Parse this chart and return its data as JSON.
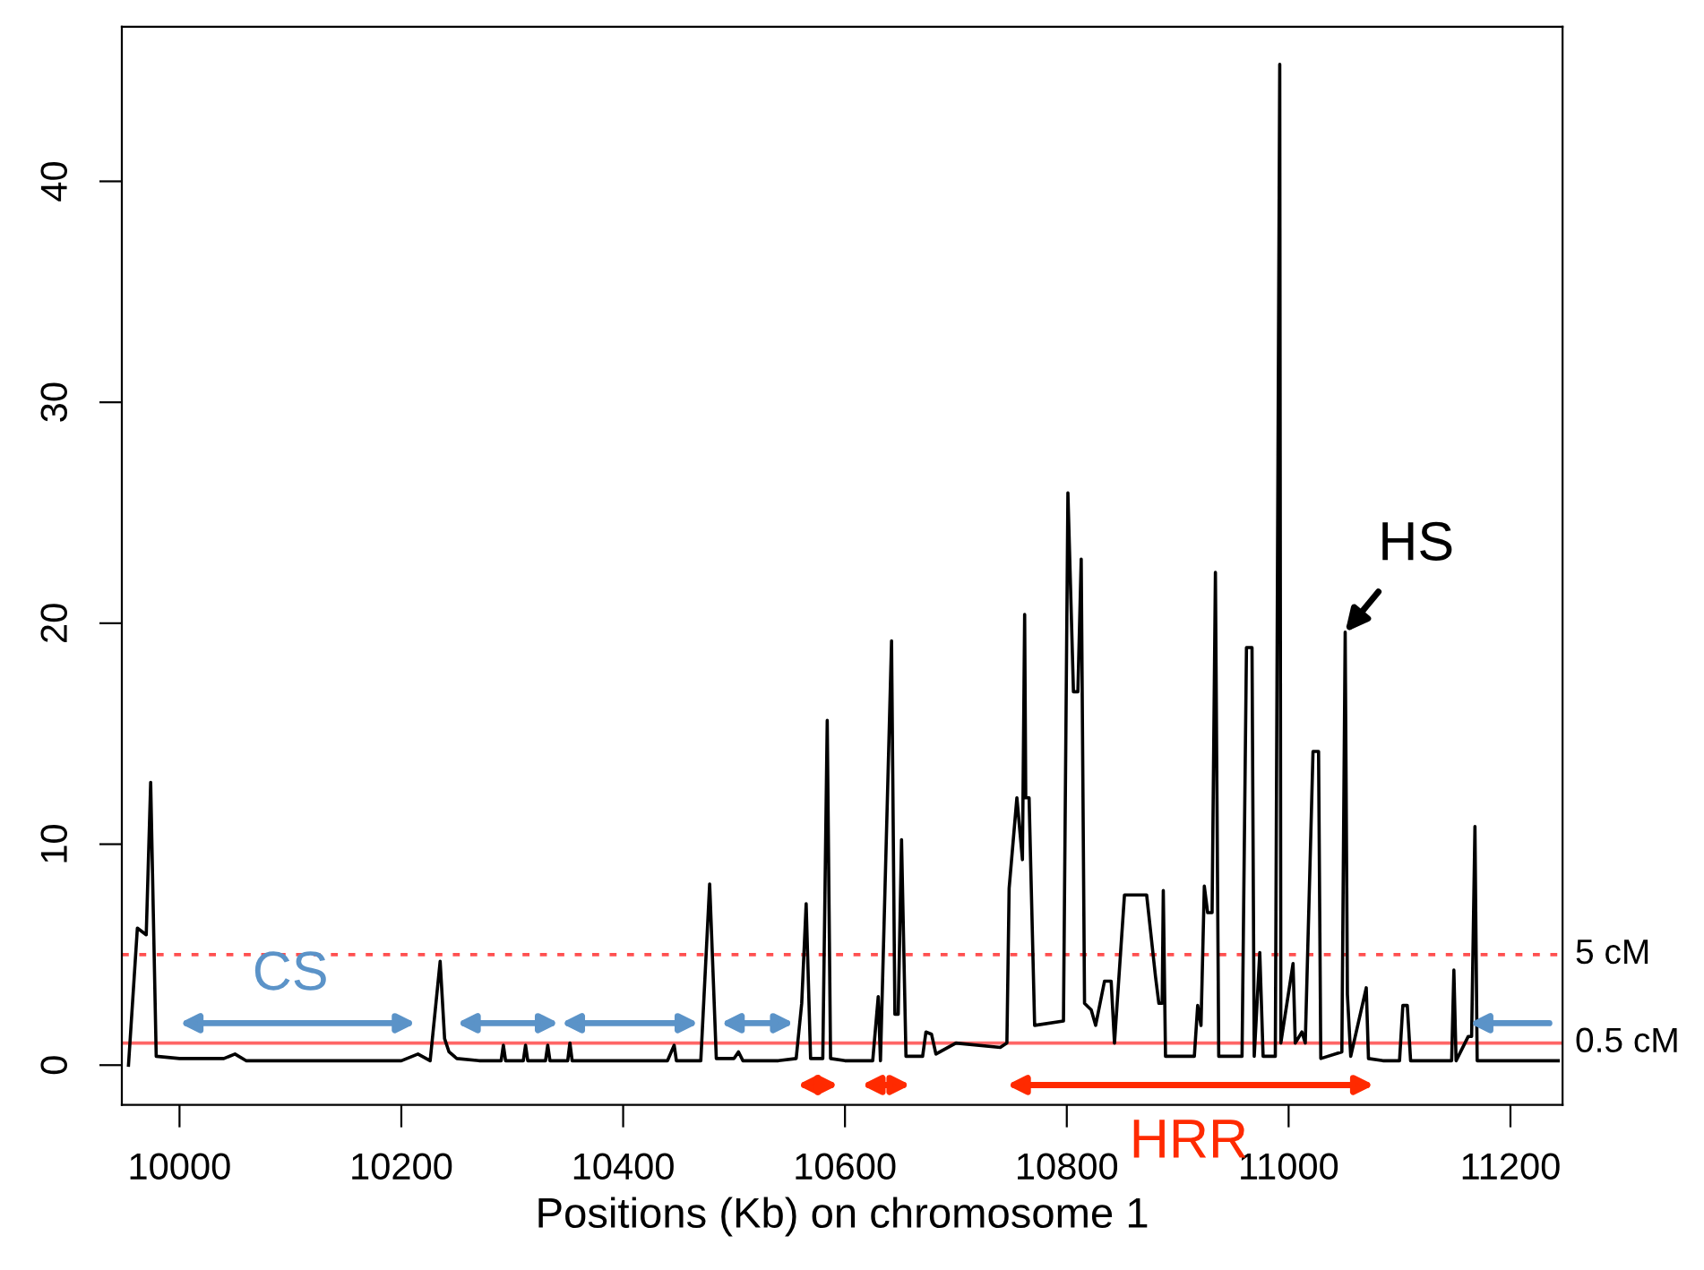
{
  "chart_data": {
    "type": "line",
    "xlabel": "Positions (Kb) on chromosome 1",
    "xlim": [
      9948,
      11247
    ],
    "xticks": [
      10000,
      10200,
      10400,
      10600,
      10800,
      11000,
      11200
    ],
    "ylim": [
      -1.8,
      47.0
    ],
    "yticks": [
      0,
      10,
      20,
      30,
      40
    ],
    "grid": false,
    "legend": false,
    "marker": "none",
    "line_style": "solid",
    "series": [
      {
        "color": "#000000",
        "x": [
          9954,
          9962,
          9970,
          9974,
          9979,
          10000,
          10020,
          10040,
          10050,
          10060,
          10100,
          10200,
          10215,
          10226,
          10235,
          10239,
          10243,
          10250,
          10270,
          10290,
          10292,
          10294,
          10310,
          10312,
          10314,
          10330,
          10332,
          10334,
          10350,
          10352,
          10354,
          10380,
          10400,
          10440,
          10446,
          10448,
          10470,
          10478,
          10484,
          10500,
          10504,
          10508,
          10540,
          10556,
          10561,
          10565,
          10569,
          10580,
          10584,
          10587,
          10600,
          10625,
          10630,
          10632,
          10642,
          10645,
          10648,
          10651,
          10655,
          10670,
          10673,
          10678,
          10682,
          10700,
          10740,
          10746,
          10748,
          10755,
          10760,
          10762,
          10763,
          10766,
          10771,
          10797,
          10801,
          10806,
          10810,
          10813,
          10816,
          10822,
          10826,
          10834,
          10840,
          10843,
          10852,
          10872,
          10880,
          10883,
          10886,
          10887,
          10889,
          10915,
          10918,
          10921,
          10924,
          10927,
          10931,
          10934,
          10937,
          10958,
          10962,
          10967,
          10969,
          10974,
          10977,
          10988,
          10992,
          10993,
          11004,
          11006,
          11012,
          11015,
          11022,
          11027,
          11029,
          11048,
          11051,
          11053,
          11056,
          11070,
          11072,
          11085,
          11100,
          11103,
          11107,
          11110,
          11147,
          11149,
          11151,
          11162,
          11165,
          11168,
          11170,
          11200,
          11243
        ],
        "values": [
          0,
          6.2,
          5.9,
          12.8,
          0.4,
          0.3,
          0.3,
          0.3,
          0.5,
          0.2,
          0.2,
          0.2,
          0.5,
          0.2,
          4.7,
          1.2,
          0.6,
          0.3,
          0.2,
          0.2,
          0.9,
          0.2,
          0.2,
          0.9,
          0.2,
          0.2,
          0.9,
          0.2,
          0.2,
          1.0,
          0.2,
          0.2,
          0.2,
          0.2,
          0.9,
          0.2,
          0.2,
          8.2,
          0.3,
          0.3,
          0.6,
          0.2,
          0.2,
          0.3,
          2.8,
          7.3,
          0.3,
          0.3,
          15.6,
          0.3,
          0.2,
          0.2,
          3.1,
          0.2,
          19.2,
          2.3,
          2.3,
          10.2,
          0.4,
          0.4,
          1.5,
          1.4,
          0.5,
          1.0,
          0.8,
          1.0,
          8.0,
          12.1,
          9.3,
          20.4,
          12.1,
          12.1,
          1.8,
          2.0,
          25.9,
          16.9,
          16.9,
          22.9,
          2.8,
          2.5,
          1.8,
          3.8,
          3.8,
          1.0,
          7.7,
          7.7,
          4.0,
          2.8,
          2.8,
          7.9,
          0.4,
          0.4,
          2.7,
          1.8,
          8.1,
          6.9,
          6.9,
          22.3,
          0.4,
          0.4,
          18.9,
          18.9,
          0.4,
          5.1,
          0.4,
          0.4,
          45.3,
          1.0,
          4.6,
          1.0,
          1.5,
          1.0,
          14.2,
          14.2,
          0.3,
          0.6,
          19.6,
          3.2,
          0.4,
          3.5,
          0.3,
          0.2,
          0.2,
          2.7,
          2.7,
          0.2,
          0.2,
          4.3,
          0.2,
          1.3,
          1.3,
          10.8,
          0.2,
          0.2,
          0.2
        ]
      }
    ],
    "ref_lines": [
      {
        "axis": "y",
        "value": 5,
        "label": "5 cM",
        "color": "#ff5050",
        "line_style": "dotted"
      },
      {
        "axis": "y",
        "value": 1,
        "label": "0.5 cM",
        "color": "#ff6666",
        "line_style": "solid"
      }
    ],
    "annotations": [
      "CS",
      {
        "text": "HS",
        "x": 11051,
        "y": 19.6
      },
      "HRR"
    ]
  }
}
